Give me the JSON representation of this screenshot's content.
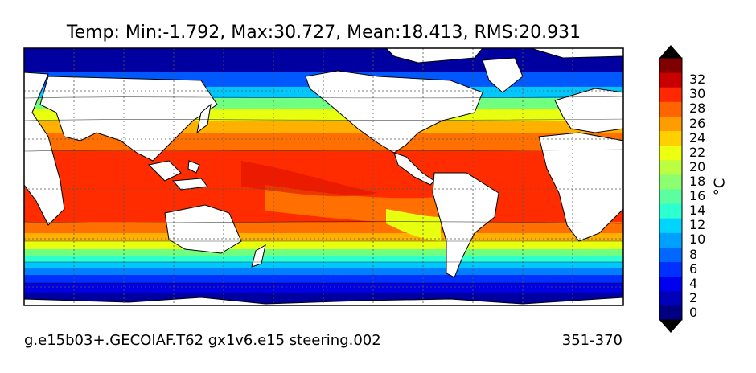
{
  "title": "Temp: Min:-1.792, Max:30.727, Mean:18.413, RMS:20.931",
  "footer": {
    "case": "g.e15b03+.GECOIAF.T62 gx1v6.e15 steering.002",
    "years": "351-370"
  },
  "colorbar": {
    "label_main": "°C",
    "ticks": [
      "32",
      "30",
      "28",
      "26",
      "24",
      "22",
      "20",
      "18",
      "16",
      "14",
      "12",
      "10",
      "8",
      "6",
      "4",
      "2",
      "0"
    ],
    "colors": [
      "#000080",
      "#0000b8",
      "#0000f0",
      "#0030ff",
      "#0068ff",
      "#00a0ff",
      "#00d4ff",
      "#2cffd0",
      "#5cffa0",
      "#8cff70",
      "#bcff40",
      "#ecff10",
      "#ffd000",
      "#ff9c00",
      "#ff6400",
      "#ff2800",
      "#c80000",
      "#800000"
    ]
  },
  "colors": {
    "land": "#ffffff",
    "coast": "#000000",
    "grid": "#555555"
  }
}
